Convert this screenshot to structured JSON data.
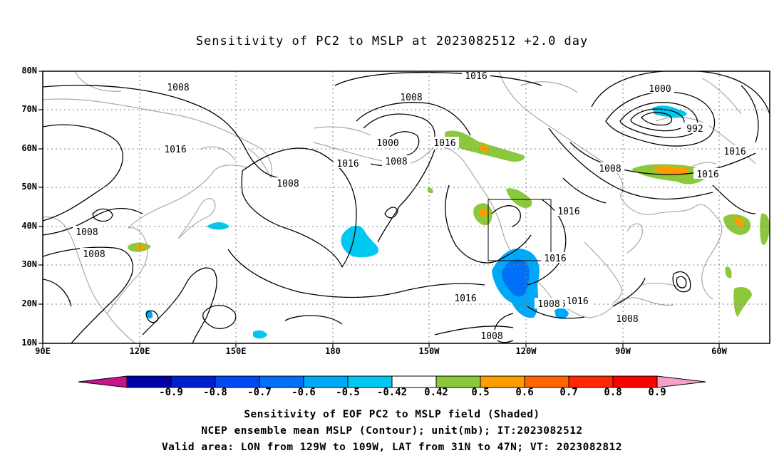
{
  "title": "Sensitivity of PC2 to MSLP at 2023082512 +2.0 day",
  "map": {
    "lat_labels": [
      "80N",
      "70N",
      "60N",
      "50N",
      "40N",
      "30N",
      "20N",
      "10N"
    ],
    "lon_labels": [
      "90E",
      "120E",
      "150E",
      "180",
      "150W",
      "120W",
      "90W",
      "60W"
    ],
    "contour_labels": [
      "1008",
      "1016",
      "1008",
      "1016",
      "1008",
      "1008",
      "1016",
      "1008",
      "1000",
      "1008",
      "1016",
      "1016",
      "1000",
      "992",
      "1008",
      "1016",
      "1016",
      "1016",
      "1016",
      "1016",
      "1016",
      "1008",
      "1008",
      "1008"
    ],
    "colors": {
      "contour": "#000000",
      "coast": "#a9a9a9",
      "grid": "#808080"
    }
  },
  "colorbar": {
    "labels": [
      "-0.9",
      "-0.8",
      "-0.7",
      "-0.6",
      "-0.5",
      "-0.42",
      "0.42",
      "0.5",
      "0.6",
      "0.7",
      "0.8",
      "0.9"
    ],
    "colors": [
      "#0000a8",
      "#0020d0",
      "#0048f0",
      "#0070f8",
      "#00a8f8",
      "#00c8f0",
      "#ffffff",
      "#8cc83c",
      "#ff9c00",
      "#ff6400",
      "#ff2800",
      "#ff0000"
    ],
    "under_color": "#c8148c",
    "over_color": "#f8a0c8"
  },
  "captions": {
    "line1": "Sensitivity of EOF PC2 to MSLP field (Shaded)",
    "line2": "NCEP ensemble mean MSLP (Contour); unit(mb); IT:2023082512",
    "line3": "Valid area: LON from 129W to 109W, LAT from 31N to 47N; VT: 2023082812"
  }
}
